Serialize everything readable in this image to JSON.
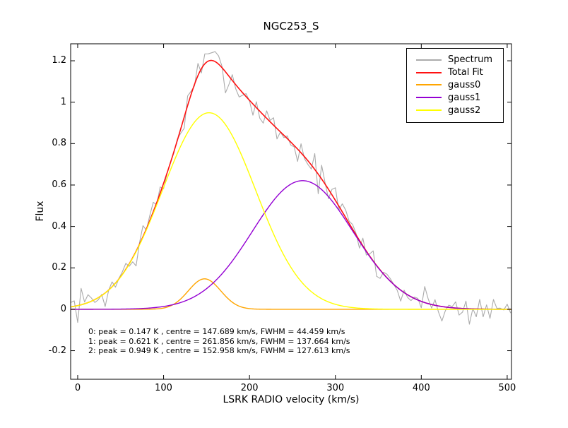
{
  "figure": {
    "background": "#ffffff",
    "frame_color": "#000000",
    "text_color": "#000000"
  },
  "chart_data": {
    "type": "line",
    "title": "NGC253_S",
    "xlabel": "LSRK RADIO velocity (km/s)",
    "ylabel": "Flux",
    "xlim": [
      -8.2,
      505
    ],
    "ylim": [
      -0.338,
      1.282
    ],
    "x_ticks": [
      0,
      100,
      200,
      300,
      400,
      500
    ],
    "x_tick_labels": [
      "0",
      "100",
      "200",
      "300",
      "400",
      "500"
    ],
    "y_ticks": [
      -0.2,
      0,
      0.2,
      0.4,
      0.6,
      0.8,
      1,
      1.2
    ],
    "y_tick_labels": [
      "-0.2",
      "0",
      "0.2",
      "0.4",
      "0.6",
      "0.8",
      "1",
      "1.2"
    ],
    "grid": false,
    "legend": {
      "position": "upper right",
      "entries": [
        {
          "label": "Spectrum",
          "color": "#ababab"
        },
        {
          "label": "Total Fit",
          "color": "#ff1111"
        },
        {
          "label": "gauss0",
          "color": "#ffa500"
        },
        {
          "label": "gauss1",
          "color": "#9400d3"
        },
        {
          "label": "gauss2",
          "color": "#ffff00"
        }
      ]
    },
    "series": {
      "spectrum": {
        "label": "Spectrum",
        "color": "#ababab",
        "x_start": -8,
        "x_end": 504,
        "channel_width_kms": 4,
        "noise_sigma": 0.04,
        "noise_seed": 7
      },
      "total_fit": {
        "label": "Total Fit",
        "color": "#ff1111"
      },
      "gaussians": [
        {
          "label": "gauss0",
          "peak_K": 0.147,
          "centre_kms": 147.689,
          "fwhm_kms": 44.459,
          "color": "#ffa500"
        },
        {
          "label": "gauss1",
          "peak_K": 0.621,
          "centre_kms": 261.856,
          "fwhm_kms": 137.664,
          "color": "#9400d3"
        },
        {
          "label": "gauss2",
          "peak_K": 0.949,
          "centre_kms": 152.958,
          "fwhm_kms": 127.613,
          "color": "#ffff00"
        }
      ]
    },
    "annotation": {
      "lines": [
        "0: peak = 0.147 K , centre = 147.689 km/s, FWHM = 44.459 km/s",
        "1: peak = 0.621 K , centre = 261.856 km/s, FWHM = 137.664 km/s",
        "2: peak = 0.949 K , centre = 152.958 km/s, FWHM = 127.613 km/s"
      ]
    }
  }
}
